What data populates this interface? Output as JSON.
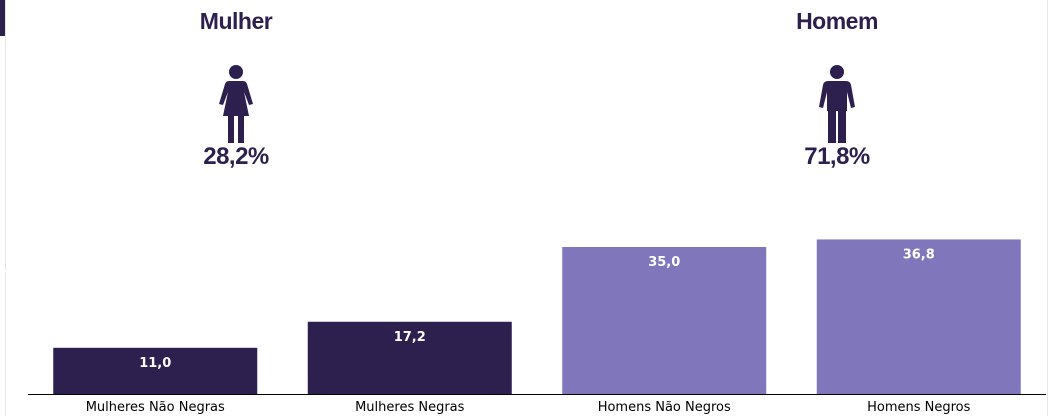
{
  "groups": {
    "female": {
      "title": "Mulher",
      "percent": "28,2%",
      "icon": "female-person-icon"
    },
    "male": {
      "title": "Homem",
      "percent": "71,8%",
      "icon": "male-person-icon"
    }
  },
  "colors": {
    "dark": "#2d1f4e",
    "light": "#8076bc"
  },
  "chart_data": {
    "type": "bar",
    "categories": [
      "Mulheres Não Negras",
      "Mulheres Negras",
      "Homens Não Negros",
      "Homens Negros"
    ],
    "values": [
      11.0,
      17.2,
      35.0,
      36.8
    ],
    "value_labels": [
      "11,0",
      "17,2",
      "35,0",
      "36,8"
    ],
    "bar_colors": [
      "#2d1f4e",
      "#2d1f4e",
      "#8076bc",
      "#8076bc"
    ],
    "ylim": [
      0,
      40
    ],
    "grid": false,
    "legend": "none"
  }
}
